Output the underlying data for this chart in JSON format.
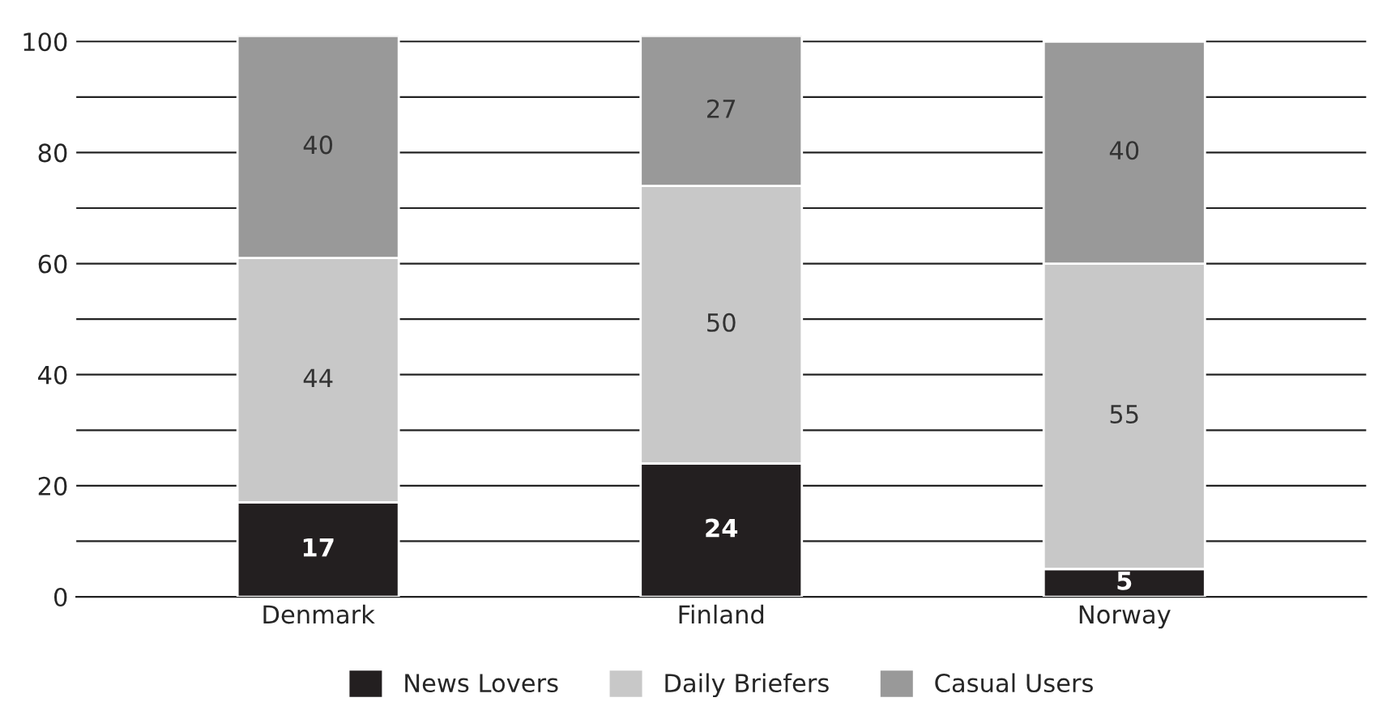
{
  "chart_data": {
    "type": "bar",
    "stacked": true,
    "categories": [
      "Denmark",
      "Finland",
      "Norway"
    ],
    "series": [
      {
        "name": "News Lovers",
        "color": "#231f20",
        "values": [
          17,
          24,
          5
        ]
      },
      {
        "name": "Daily Briefers",
        "color": "#c8c8c8",
        "values": [
          44,
          50,
          55
        ]
      },
      {
        "name": "Casual Users",
        "color": "#999999",
        "values": [
          40,
          27,
          40
        ]
      }
    ],
    "ylim": [
      0,
      101
    ],
    "yticks": [
      0,
      {
        "value": 10,
        "label": null
      },
      20,
      {
        "value": 30,
        "label": null
      },
      40,
      {
        "value": 50,
        "label": null
      },
      60,
      {
        "value": 70,
        "label": null
      },
      80,
      {
        "value": 90,
        "label": null
      },
      100
    ],
    "grid": "y",
    "legend": "bottom",
    "data_labels": true
  }
}
